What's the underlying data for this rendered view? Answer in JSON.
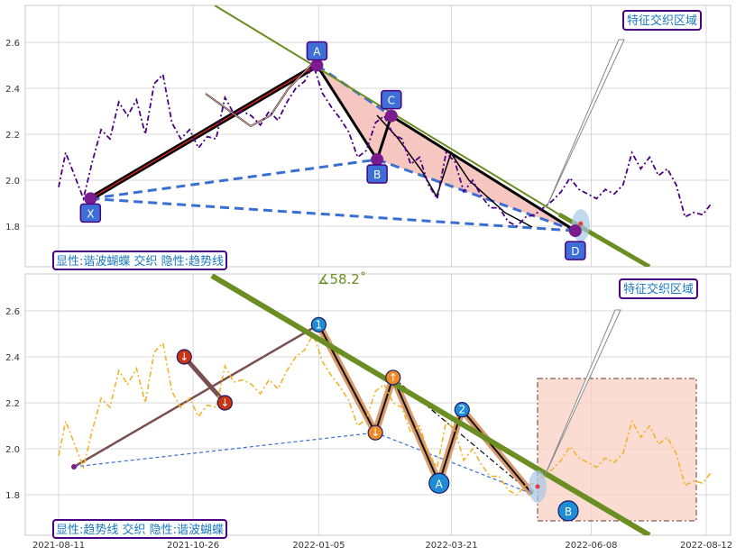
{
  "chart_data": [
    {
      "type": "line",
      "panel": "top",
      "ylim": [
        1.62,
        2.76
      ],
      "yticks": [
        1.8,
        2.0,
        2.2,
        2.4,
        2.6
      ],
      "series": [
        {
          "color": "#4b0082",
          "style": "dashdot",
          "x": [
            "2021-08-11",
            "2021-08-15",
            "2021-08-20",
            "2021-08-25",
            "2021-08-30",
            "2021-09-04",
            "2021-09-09",
            "2021-09-14",
            "2021-09-19",
            "2021-09-24",
            "2021-09-29",
            "2021-10-04",
            "2021-10-09",
            "2021-10-14",
            "2021-10-19",
            "2021-10-24",
            "2021-10-29",
            "2021-11-03",
            "2021-11-08",
            "2021-11-13",
            "2021-11-18",
            "2021-11-23",
            "2021-11-28",
            "2021-12-03",
            "2021-12-08",
            "2021-12-13",
            "2021-12-18",
            "2021-12-23",
            "2021-12-28",
            "2022-01-02",
            "2022-01-07",
            "2022-01-12",
            "2022-01-17",
            "2022-01-22",
            "2022-01-27",
            "2022-02-01",
            "2022-02-06",
            "2022-02-11",
            "2022-02-16",
            "2022-02-21",
            "2022-02-26",
            "2022-03-03",
            "2022-03-08",
            "2022-03-13",
            "2022-03-18",
            "2022-03-23",
            "2022-03-28",
            "2022-04-02",
            "2022-04-07",
            "2022-04-12",
            "2022-04-17",
            "2022-04-22",
            "2022-04-27",
            "2022-05-02",
            "2022-05-07",
            "2022-05-12",
            "2022-05-17",
            "2022-05-22",
            "2022-05-27",
            "2022-06-01",
            "2022-06-06",
            "2022-06-11",
            "2022-06-16",
            "2022-06-21",
            "2022-06-26",
            "2022-07-01",
            "2022-07-06",
            "2022-07-11",
            "2022-07-16",
            "2022-07-21",
            "2022-07-26",
            "2022-07-31",
            "2022-08-05",
            "2022-08-10",
            "2022-08-15"
          ],
          "y": [
            1.97,
            2.12,
            2.02,
            1.92,
            2.08,
            2.22,
            2.18,
            2.34,
            2.28,
            2.35,
            2.2,
            2.42,
            2.46,
            2.25,
            2.18,
            2.22,
            2.14,
            2.19,
            2.18,
            2.36,
            2.29,
            2.3,
            2.28,
            2.24,
            2.3,
            2.26,
            2.34,
            2.4,
            2.43,
            2.5,
            2.38,
            2.32,
            2.27,
            2.21,
            2.1,
            2.13,
            2.25,
            2.28,
            2.2,
            2.18,
            2.07,
            2.1,
            1.98,
            1.92,
            2.12,
            2.08,
            1.95,
            2.0,
            1.93,
            1.88,
            1.88,
            1.82,
            1.8,
            1.84,
            1.85,
            1.88,
            1.91,
            1.95,
            2.01,
            1.96,
            1.94,
            1.92,
            1.96,
            1.94,
            1.98,
            2.12,
            2.05,
            2.1,
            2.02,
            2.05,
            1.98,
            1.84,
            1.86,
            1.85,
            1.9
          ]
        }
      ],
      "pattern": {
        "points": [
          {
            "label": "X",
            "x": "2021-08-29",
            "y": 1.92
          },
          {
            "label": "A",
            "x": "2022-01-04",
            "y": 2.5
          },
          {
            "label": "B",
            "x": "2022-02-07",
            "y": 2.09
          },
          {
            "label": "C",
            "x": "2022-02-15",
            "y": 2.28
          },
          {
            "label": "D",
            "x": "2022-05-30",
            "y": 1.78
          }
        ]
      },
      "zone_label": "特征交织区域",
      "panel_label": "显性:谐波蝴蝶 交织 隐性:趋势线"
    },
    {
      "type": "line",
      "panel": "bottom",
      "ylim": [
        1.62,
        2.76
      ],
      "yticks": [
        1.8,
        2.0,
        2.2,
        2.4,
        2.6
      ],
      "xticks": [
        "2021-08-11",
        "2021-10-26",
        "2022-01-05",
        "2022-03-21",
        "2022-06-08",
        "2022-08-12"
      ],
      "series": [
        {
          "color": "#f0b429",
          "style": "dashdot",
          "x": [
            "2021-08-11",
            "2021-08-15",
            "2021-08-20",
            "2021-08-25",
            "2021-08-30",
            "2021-09-04",
            "2021-09-09",
            "2021-09-14",
            "2021-09-19",
            "2021-09-24",
            "2021-09-29",
            "2021-10-04",
            "2021-10-09",
            "2021-10-14",
            "2021-10-19",
            "2021-10-24",
            "2021-10-29",
            "2021-11-03",
            "2021-11-08",
            "2021-11-13",
            "2021-11-18",
            "2021-11-23",
            "2021-11-28",
            "2021-12-03",
            "2021-12-08",
            "2021-12-13",
            "2021-12-18",
            "2021-12-23",
            "2021-12-28",
            "2022-01-02",
            "2022-01-07",
            "2022-01-12",
            "2022-01-17",
            "2022-01-22",
            "2022-01-27",
            "2022-02-01",
            "2022-02-06",
            "2022-02-11",
            "2022-02-16",
            "2022-02-21",
            "2022-02-26",
            "2022-03-03",
            "2022-03-08",
            "2022-03-13",
            "2022-03-18",
            "2022-03-23",
            "2022-03-28",
            "2022-04-02",
            "2022-04-07",
            "2022-04-12",
            "2022-04-17",
            "2022-04-22",
            "2022-04-27",
            "2022-05-02",
            "2022-05-07",
            "2022-05-12",
            "2022-05-17",
            "2022-05-22",
            "2022-05-27",
            "2022-06-01",
            "2022-06-06",
            "2022-06-11",
            "2022-06-16",
            "2022-06-21",
            "2022-06-26",
            "2022-07-01",
            "2022-07-06",
            "2022-07-11",
            "2022-07-16",
            "2022-07-21",
            "2022-07-26",
            "2022-07-31",
            "2022-08-05",
            "2022-08-10",
            "2022-08-15"
          ],
          "y": [
            1.97,
            2.12,
            2.02,
            1.92,
            2.08,
            2.22,
            2.18,
            2.34,
            2.28,
            2.35,
            2.2,
            2.42,
            2.46,
            2.25,
            2.18,
            2.22,
            2.14,
            2.19,
            2.18,
            2.36,
            2.29,
            2.3,
            2.28,
            2.24,
            2.3,
            2.26,
            2.34,
            2.4,
            2.43,
            2.5,
            2.38,
            2.32,
            2.27,
            2.21,
            2.1,
            2.13,
            2.25,
            2.28,
            2.2,
            2.18,
            2.07,
            2.1,
            1.98,
            1.92,
            2.12,
            2.08,
            1.95,
            2.0,
            1.93,
            1.88,
            1.88,
            1.82,
            1.8,
            1.84,
            1.85,
            1.88,
            1.91,
            1.95,
            2.01,
            1.96,
            1.94,
            1.92,
            1.96,
            1.94,
            1.98,
            2.12,
            2.05,
            2.1,
            2.02,
            2.05,
            1.98,
            1.84,
            1.86,
            1.85,
            1.9
          ]
        }
      ],
      "wave_points": [
        {
          "label": "↓",
          "x": "2021-10-21",
          "y": 2.4,
          "color": "#cc3311"
        },
        {
          "label": "↓",
          "x": "2021-11-13",
          "y": 2.2,
          "color": "#cc3311"
        },
        {
          "label": "1",
          "x": "2022-01-05",
          "y": 2.54,
          "color": "#1f8dd6"
        },
        {
          "label": "↓",
          "x": "2022-02-06",
          "y": 2.07,
          "color": "#f08a24"
        },
        {
          "label": "↑",
          "x": "2022-02-16",
          "y": 2.31,
          "color": "#f08a24"
        },
        {
          "label": "A",
          "x": "2022-03-14",
          "y": 1.85,
          "color": "#1f8dd6"
        },
        {
          "label": "2",
          "x": "2022-03-27",
          "y": 2.17,
          "color": "#1f8dd6"
        },
        {
          "label": "B",
          "x": "2022-05-26",
          "y": 1.73,
          "color": "#1f8dd6"
        }
      ],
      "angle_label": "∡58.2˚",
      "zone_label": "特征交织区域",
      "panel_label": "显性:趋势线 交织 隐性:谐波蝴蝶"
    }
  ],
  "colors": {
    "trend": "#6b8e23",
    "pattern_dash": "#3a6fd1",
    "pattern_fill": "#f4b8b0",
    "label_box": "#3d6fd6",
    "point_purple": "#7a1b8e",
    "zone_fill": "#f9d0c3",
    "grid": "#d0d0d0"
  }
}
